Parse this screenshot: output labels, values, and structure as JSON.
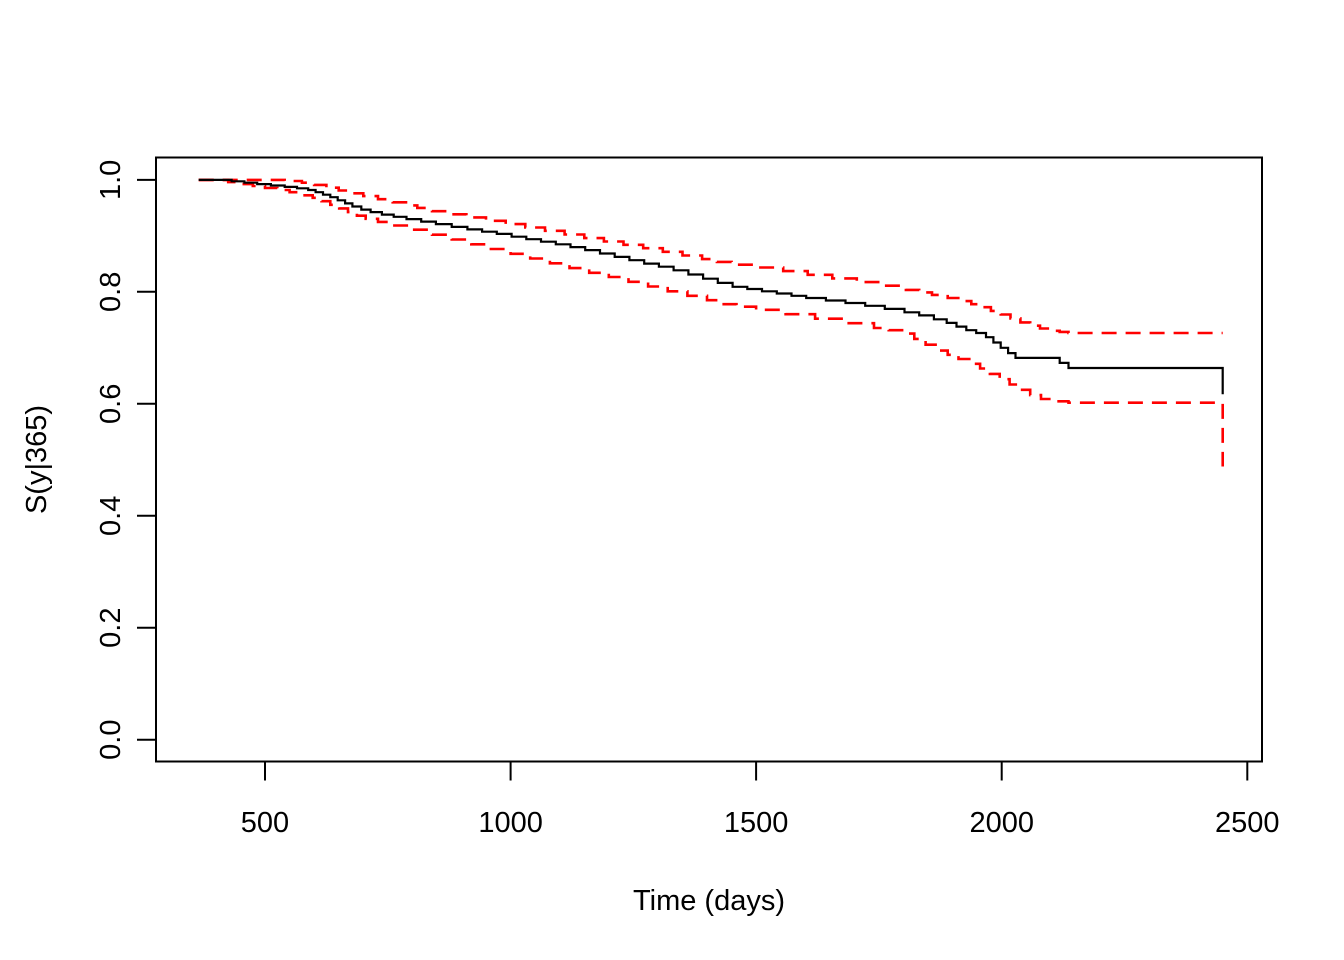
{
  "background_color": "#FFFFFF",
  "chart_data": {
    "type": "line",
    "subtype": "kaplan-meier-step-curve-with-confidence-bands",
    "title": "",
    "xlabel": "Time (days)",
    "ylabel": "S(y|365)",
    "xlim": [
      278,
      2530
    ],
    "ylim": [
      -0.039,
      1.04
    ],
    "xticks": [
      500,
      1000,
      1500,
      2000,
      2500
    ],
    "xtick_labels": [
      "500",
      "1000",
      "1500",
      "2000",
      "2500"
    ],
    "yticks": [
      0.0,
      0.2,
      0.4,
      0.6,
      0.8,
      1.0
    ],
    "ytick_labels": [
      "0.0",
      "0.2",
      "0.4",
      "0.6",
      "0.8",
      "1.0"
    ],
    "grid": false,
    "legend": null,
    "colors": {
      "estimate": "#000000",
      "confidence_band": "#FF0000"
    },
    "series": [
      {
        "key": "estimate",
        "name": "survival-estimate",
        "color": "#000000",
        "style": "solid",
        "points": [
          [
            365,
            1.0
          ],
          [
            432,
            0.9975
          ],
          [
            458,
            0.995
          ],
          [
            484,
            0.9925
          ],
          [
            512,
            0.99
          ],
          [
            540,
            0.9875
          ],
          [
            565,
            0.985
          ],
          [
            588,
            0.982
          ],
          [
            603,
            0.978
          ],
          [
            618,
            0.9735
          ],
          [
            633,
            0.969
          ],
          [
            648,
            0.9635
          ],
          [
            663,
            0.958
          ],
          [
            678,
            0.9525
          ],
          [
            696,
            0.947
          ],
          [
            715,
            0.9425
          ],
          [
            738,
            0.938
          ],
          [
            762,
            0.934
          ],
          [
            788,
            0.93
          ],
          [
            818,
            0.9255
          ],
          [
            848,
            0.921
          ],
          [
            880,
            0.916
          ],
          [
            912,
            0.9115
          ],
          [
            942,
            0.9075
          ],
          [
            972,
            0.9035
          ],
          [
            1002,
            0.8985
          ],
          [
            1032,
            0.894
          ],
          [
            1062,
            0.8895
          ],
          [
            1092,
            0.885
          ],
          [
            1122,
            0.88
          ],
          [
            1152,
            0.8745
          ],
          [
            1182,
            0.8685
          ],
          [
            1212,
            0.8625
          ],
          [
            1242,
            0.8565
          ],
          [
            1272,
            0.8505
          ],
          [
            1302,
            0.845
          ],
          [
            1332,
            0.8385
          ],
          [
            1362,
            0.831
          ],
          [
            1392,
            0.8235
          ],
          [
            1422,
            0.816
          ],
          [
            1452,
            0.809
          ],
          [
            1482,
            0.805
          ],
          [
            1512,
            0.801
          ],
          [
            1542,
            0.797
          ],
          [
            1572,
            0.793
          ],
          [
            1602,
            0.789
          ],
          [
            1642,
            0.7845
          ],
          [
            1682,
            0.78
          ],
          [
            1722,
            0.775
          ],
          [
            1762,
            0.7695
          ],
          [
            1802,
            0.7635
          ],
          [
            1832,
            0.758
          ],
          [
            1862,
            0.751
          ],
          [
            1888,
            0.7445
          ],
          [
            1908,
            0.738
          ],
          [
            1928,
            0.7315
          ],
          [
            1948,
            0.7265
          ],
          [
            1968,
            0.719
          ],
          [
            1983,
            0.7095
          ],
          [
            1998,
            0.7
          ],
          [
            2013,
            0.6905
          ],
          [
            2028,
            0.682
          ],
          [
            2118,
            0.673
          ],
          [
            2136,
            0.664
          ],
          [
            2450,
            0.617
          ]
        ]
      },
      {
        "key": "upper",
        "name": "upper-95-ci",
        "color": "#FF0000",
        "style": "dashed",
        "points": [
          [
            365,
            1.0
          ],
          [
            540,
            0.998
          ],
          [
            575,
            0.995
          ],
          [
            600,
            0.991
          ],
          [
            625,
            0.986
          ],
          [
            650,
            0.981
          ],
          [
            675,
            0.976
          ],
          [
            700,
            0.971
          ],
          [
            730,
            0.9655
          ],
          [
            760,
            0.96
          ],
          [
            790,
            0.9545
          ],
          [
            810,
            0.95
          ],
          [
            840,
            0.944
          ],
          [
            875,
            0.9385
          ],
          [
            910,
            0.933
          ],
          [
            950,
            0.927
          ],
          [
            990,
            0.921
          ],
          [
            1030,
            0.915
          ],
          [
            1070,
            0.909
          ],
          [
            1110,
            0.9025
          ],
          [
            1150,
            0.896
          ],
          [
            1190,
            0.89
          ],
          [
            1230,
            0.884
          ],
          [
            1270,
            0.878
          ],
          [
            1310,
            0.8715
          ],
          [
            1350,
            0.865
          ],
          [
            1390,
            0.8585
          ],
          [
            1420,
            0.8535
          ],
          [
            1450,
            0.8485
          ],
          [
            1505,
            0.8435
          ],
          [
            1555,
            0.837
          ],
          [
            1605,
            0.8305
          ],
          [
            1655,
            0.824
          ],
          [
            1705,
            0.8175
          ],
          [
            1755,
            0.811
          ],
          [
            1805,
            0.8035
          ],
          [
            1832,
            0.799
          ],
          [
            1858,
            0.7945
          ],
          [
            1890,
            0.789
          ],
          [
            1915,
            0.7835
          ],
          [
            1938,
            0.778
          ],
          [
            1958,
            0.7725
          ],
          [
            1978,
            0.766
          ],
          [
            1998,
            0.7595
          ],
          [
            2018,
            0.7525
          ],
          [
            2038,
            0.7455
          ],
          [
            2058,
            0.7395
          ],
          [
            2078,
            0.7345
          ],
          [
            2098,
            0.7305
          ],
          [
            2118,
            0.7285
          ],
          [
            2136,
            0.7265
          ],
          [
            2450,
            0.7265
          ]
        ]
      },
      {
        "key": "lower",
        "name": "lower-95-ci",
        "color": "#FF0000",
        "style": "dashed",
        "points": [
          [
            365,
            1.0
          ],
          [
            425,
            0.996
          ],
          [
            450,
            0.9925
          ],
          [
            475,
            0.989
          ],
          [
            500,
            0.9855
          ],
          [
            525,
            0.982
          ],
          [
            550,
            0.978
          ],
          [
            575,
            0.9725
          ],
          [
            597,
            0.968
          ],
          [
            615,
            0.962
          ],
          [
            633,
            0.9555
          ],
          [
            651,
            0.949
          ],
          [
            669,
            0.9425
          ],
          [
            687,
            0.936
          ],
          [
            705,
            0.9305
          ],
          [
            730,
            0.925
          ],
          [
            760,
            0.9185
          ],
          [
            795,
            0.911
          ],
          [
            840,
            0.902
          ],
          [
            880,
            0.8935
          ],
          [
            920,
            0.885
          ],
          [
            960,
            0.8765
          ],
          [
            1000,
            0.868
          ],
          [
            1040,
            0.8595
          ],
          [
            1080,
            0.851
          ],
          [
            1120,
            0.8425
          ],
          [
            1160,
            0.834
          ],
          [
            1200,
            0.8265
          ],
          [
            1240,
            0.818
          ],
          [
            1280,
            0.8095
          ],
          [
            1320,
            0.801
          ],
          [
            1360,
            0.793
          ],
          [
            1400,
            0.785
          ],
          [
            1430,
            0.778
          ],
          [
            1460,
            0.7735
          ],
          [
            1500,
            0.768
          ],
          [
            1560,
            0.76
          ],
          [
            1620,
            0.752
          ],
          [
            1680,
            0.744
          ],
          [
            1740,
            0.7355
          ],
          [
            1770,
            0.7315
          ],
          [
            1800,
            0.7255
          ],
          [
            1822,
            0.716
          ],
          [
            1845,
            0.7055
          ],
          [
            1868,
            0.695
          ],
          [
            1890,
            0.6875
          ],
          [
            1912,
            0.68
          ],
          [
            1934,
            0.6715
          ],
          [
            1956,
            0.663
          ],
          [
            1976,
            0.6535
          ],
          [
            1996,
            0.644
          ],
          [
            2016,
            0.6345
          ],
          [
            2036,
            0.625
          ],
          [
            2058,
            0.6155
          ],
          [
            2080,
            0.6085
          ],
          [
            2110,
            0.6045
          ],
          [
            2136,
            0.602
          ],
          [
            2450,
            0.488
          ]
        ]
      }
    ]
  }
}
